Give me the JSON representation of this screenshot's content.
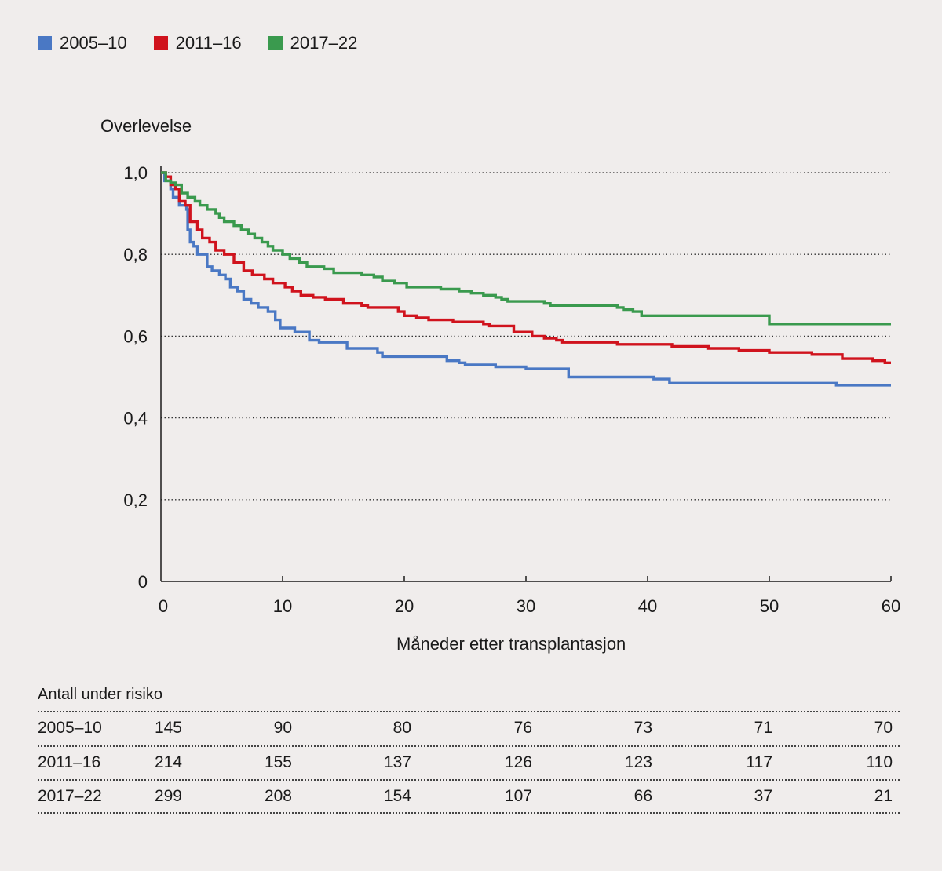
{
  "legend": [
    {
      "label": "2005–10",
      "color": "#4a78c4"
    },
    {
      "label": "2011–16",
      "color": "#d0131d"
    },
    {
      "label": "2017–22",
      "color": "#3a9a4e"
    }
  ],
  "chart_data": {
    "type": "line",
    "ylabel": "Overlevelse",
    "xlabel": "Måneder etter transplantasjon",
    "xlim": [
      0,
      60
    ],
    "ylim": [
      0,
      1.0
    ],
    "xticks": [
      "0",
      "10",
      "20",
      "30",
      "40",
      "50",
      "60"
    ],
    "yticks": [
      "0",
      "0,2",
      "0,4",
      "0,6",
      "0,8",
      "1,0"
    ],
    "grid": "horizontal-dotted",
    "series": [
      {
        "name": "2005–10",
        "color": "#4a78c4",
        "points": [
          [
            0,
            1.0
          ],
          [
            0.3,
            0.98
          ],
          [
            0.8,
            0.96
          ],
          [
            1.0,
            0.94
          ],
          [
            1.5,
            0.92
          ],
          [
            2.1,
            0.91
          ],
          [
            2.2,
            0.86
          ],
          [
            2.4,
            0.83
          ],
          [
            2.7,
            0.82
          ],
          [
            3.0,
            0.8
          ],
          [
            3.8,
            0.77
          ],
          [
            4.2,
            0.76
          ],
          [
            4.8,
            0.75
          ],
          [
            5.3,
            0.74
          ],
          [
            5.7,
            0.72
          ],
          [
            6.3,
            0.71
          ],
          [
            6.8,
            0.69
          ],
          [
            7.4,
            0.68
          ],
          [
            8.0,
            0.67
          ],
          [
            8.8,
            0.66
          ],
          [
            9.4,
            0.64
          ],
          [
            9.8,
            0.62
          ],
          [
            11.0,
            0.61
          ],
          [
            12.2,
            0.59
          ],
          [
            13.0,
            0.585
          ],
          [
            15.3,
            0.57
          ],
          [
            17.8,
            0.56
          ],
          [
            18.2,
            0.55
          ],
          [
            23.5,
            0.54
          ],
          [
            24.5,
            0.535
          ],
          [
            25.0,
            0.53
          ],
          [
            27.5,
            0.525
          ],
          [
            30.0,
            0.52
          ],
          [
            33.5,
            0.5
          ],
          [
            40.5,
            0.495
          ],
          [
            41.8,
            0.485
          ],
          [
            55.5,
            0.48
          ],
          [
            60.0,
            0.48
          ]
        ]
      },
      {
        "name": "2011–16",
        "color": "#d0131d",
        "points": [
          [
            0,
            1.0
          ],
          [
            0.4,
            0.99
          ],
          [
            0.8,
            0.97
          ],
          [
            1.2,
            0.96
          ],
          [
            1.5,
            0.93
          ],
          [
            2.0,
            0.92
          ],
          [
            2.4,
            0.88
          ],
          [
            3.0,
            0.86
          ],
          [
            3.4,
            0.84
          ],
          [
            4.0,
            0.83
          ],
          [
            4.5,
            0.81
          ],
          [
            5.2,
            0.8
          ],
          [
            6.0,
            0.78
          ],
          [
            6.8,
            0.76
          ],
          [
            7.5,
            0.75
          ],
          [
            8.5,
            0.74
          ],
          [
            9.2,
            0.73
          ],
          [
            10.2,
            0.72
          ],
          [
            10.8,
            0.71
          ],
          [
            11.5,
            0.7
          ],
          [
            12.5,
            0.695
          ],
          [
            13.5,
            0.69
          ],
          [
            15.0,
            0.68
          ],
          [
            16.5,
            0.675
          ],
          [
            17.0,
            0.67
          ],
          [
            19.5,
            0.66
          ],
          [
            20.0,
            0.65
          ],
          [
            21.0,
            0.645
          ],
          [
            22.0,
            0.64
          ],
          [
            24.0,
            0.635
          ],
          [
            26.5,
            0.63
          ],
          [
            27.0,
            0.625
          ],
          [
            29.0,
            0.61
          ],
          [
            30.5,
            0.6
          ],
          [
            31.5,
            0.595
          ],
          [
            32.5,
            0.59
          ],
          [
            33.0,
            0.585
          ],
          [
            37.5,
            0.58
          ],
          [
            42.0,
            0.575
          ],
          [
            45.0,
            0.57
          ],
          [
            47.5,
            0.565
          ],
          [
            50.0,
            0.56
          ],
          [
            53.5,
            0.555
          ],
          [
            56.0,
            0.545
          ],
          [
            58.5,
            0.54
          ],
          [
            59.5,
            0.535
          ],
          [
            60.0,
            0.535
          ]
        ]
      },
      {
        "name": "2017–22",
        "color": "#3a9a4e",
        "points": [
          [
            0,
            1.0
          ],
          [
            0.4,
            0.98
          ],
          [
            0.8,
            0.975
          ],
          [
            1.2,
            0.97
          ],
          [
            1.7,
            0.95
          ],
          [
            2.2,
            0.94
          ],
          [
            2.8,
            0.93
          ],
          [
            3.2,
            0.92
          ],
          [
            3.8,
            0.91
          ],
          [
            4.5,
            0.9
          ],
          [
            4.8,
            0.89
          ],
          [
            5.2,
            0.88
          ],
          [
            6.0,
            0.87
          ],
          [
            6.6,
            0.86
          ],
          [
            7.2,
            0.85
          ],
          [
            7.7,
            0.84
          ],
          [
            8.3,
            0.83
          ],
          [
            8.8,
            0.82
          ],
          [
            9.2,
            0.81
          ],
          [
            10.0,
            0.8
          ],
          [
            10.6,
            0.79
          ],
          [
            11.4,
            0.78
          ],
          [
            12.0,
            0.77
          ],
          [
            13.4,
            0.765
          ],
          [
            14.2,
            0.755
          ],
          [
            16.5,
            0.75
          ],
          [
            17.5,
            0.745
          ],
          [
            18.2,
            0.735
          ],
          [
            19.2,
            0.73
          ],
          [
            20.2,
            0.72
          ],
          [
            23.0,
            0.715
          ],
          [
            24.5,
            0.71
          ],
          [
            25.5,
            0.705
          ],
          [
            26.5,
            0.7
          ],
          [
            27.5,
            0.695
          ],
          [
            28.0,
            0.69
          ],
          [
            28.5,
            0.685
          ],
          [
            31.5,
            0.68
          ],
          [
            32.0,
            0.675
          ],
          [
            37.5,
            0.67
          ],
          [
            38.0,
            0.665
          ],
          [
            38.8,
            0.66
          ],
          [
            39.5,
            0.65
          ],
          [
            49.8,
            0.65
          ],
          [
            50.0,
            0.63
          ],
          [
            60.0,
            0.63
          ]
        ]
      }
    ]
  },
  "risk_table": {
    "title": "Antall under risiko",
    "rows": [
      {
        "label": "2005–10",
        "values": [
          "145",
          "90",
          "80",
          "76",
          "73",
          "71",
          "70"
        ]
      },
      {
        "label": "2011–16",
        "values": [
          "214",
          "155",
          "137",
          "126",
          "123",
          "117",
          "110"
        ]
      },
      {
        "label": "2017–22",
        "values": [
          "299",
          "208",
          "154",
          "107",
          "66",
          "37",
          "21"
        ]
      }
    ]
  }
}
